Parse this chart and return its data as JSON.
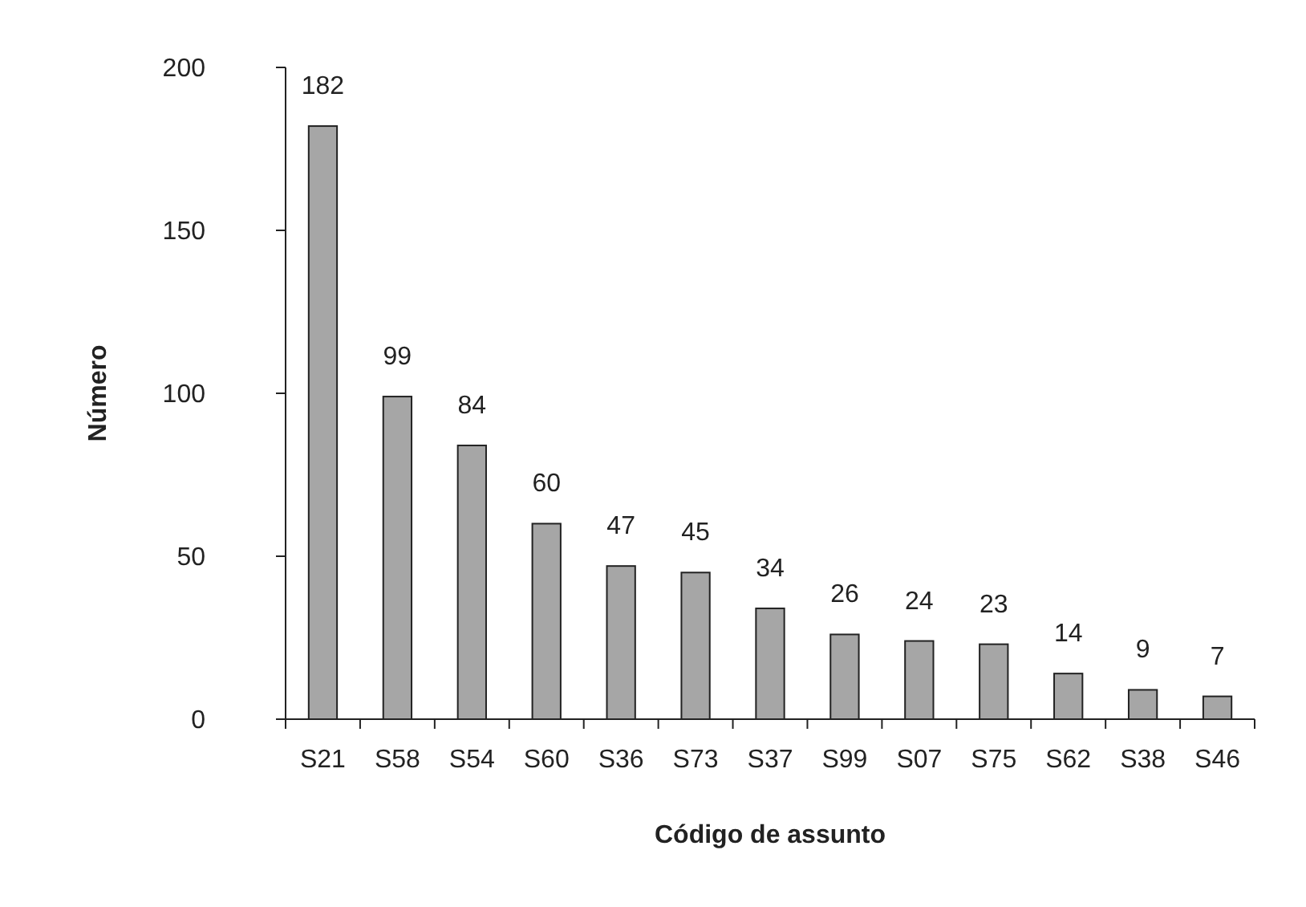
{
  "chart_data": {
    "type": "bar",
    "xlabel": "Código de assunto",
    "ylabel": "Número",
    "categories": [
      "S21",
      "S58",
      "S54",
      "S60",
      "S36",
      "S73",
      "S37",
      "S99",
      "S07",
      "S75",
      "S62",
      "S38",
      "S46"
    ],
    "values": [
      182,
      99,
      84,
      60,
      47,
      45,
      34,
      26,
      24,
      23,
      14,
      9,
      7
    ],
    "color": "#a6a6a6",
    "ylim": [
      0,
      200
    ],
    "yticks": [
      0,
      50,
      100,
      150,
      200
    ],
    "data_labels": true,
    "grid": false
  }
}
